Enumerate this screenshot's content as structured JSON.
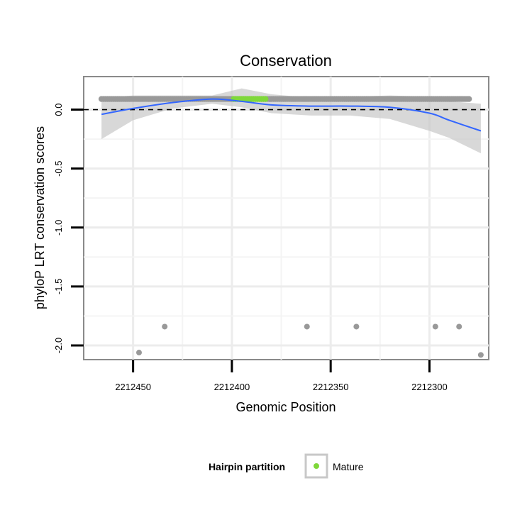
{
  "chart_data": {
    "type": "scatter",
    "title": "Conservation",
    "xlabel": "Genomic Position",
    "ylabel": "phyloP LRT conservation scores",
    "x_reversed": true,
    "xlim": [
      2212475,
      2212270
    ],
    "ylim": [
      -2.12,
      0.28
    ],
    "x_ticks": [
      2212450,
      2212400,
      2212350,
      2212300
    ],
    "x_tick_labels": [
      "2212450",
      "2212400",
      "2212350",
      "2212300"
    ],
    "y_ticks": [
      0.0,
      -0.5,
      -1.0,
      -1.5,
      -2.0
    ],
    "y_tick_labels": [
      "0.0",
      "-0.5",
      "-1.0",
      "-1.5",
      "-2.0"
    ],
    "reference_line": {
      "y": 0,
      "style": "dashed",
      "color": "#000000"
    },
    "grid": true,
    "conserved_points": {
      "x_start": 2212466,
      "x_end": 2212280,
      "y": 0.09,
      "color": "#999999"
    },
    "mature_points": {
      "x_start": 2212399,
      "x_end": 2212383,
      "y": 0.09,
      "color": "#7fd83a"
    },
    "outliers": [
      {
        "x": 2212447,
        "y": -2.06
      },
      {
        "x": 2212434,
        "y": -1.84
      },
      {
        "x": 2212362,
        "y": -1.84
      },
      {
        "x": 2212337,
        "y": -1.84
      },
      {
        "x": 2212297,
        "y": -1.84
      },
      {
        "x": 2212285,
        "y": -1.84
      },
      {
        "x": 2212274,
        "y": -2.08
      }
    ],
    "outlier_color": "#999999",
    "smooth": {
      "color": "#3366ff",
      "x": [
        2212466,
        2212450,
        2212430,
        2212410,
        2212395,
        2212380,
        2212360,
        2212340,
        2212320,
        2212300,
        2212290,
        2212274
      ],
      "y": [
        -0.04,
        0.01,
        0.06,
        0.09,
        0.07,
        0.04,
        0.03,
        0.03,
        0.02,
        -0.03,
        -0.09,
        -0.18
      ],
      "upper": [
        0.1,
        0.12,
        0.12,
        0.12,
        0.18,
        0.13,
        0.1,
        0.11,
        0.12,
        0.11,
        0.07,
        0.05
      ],
      "lower": [
        -0.25,
        -0.09,
        0.01,
        0.05,
        0.02,
        -0.03,
        -0.05,
        -0.05,
        -0.08,
        -0.18,
        -0.24,
        -0.37
      ]
    },
    "legend": {
      "position": "bottom",
      "title": "Hairpin partition",
      "entries": [
        {
          "label": "Mature",
          "color": "#7fd83a"
        }
      ]
    }
  }
}
